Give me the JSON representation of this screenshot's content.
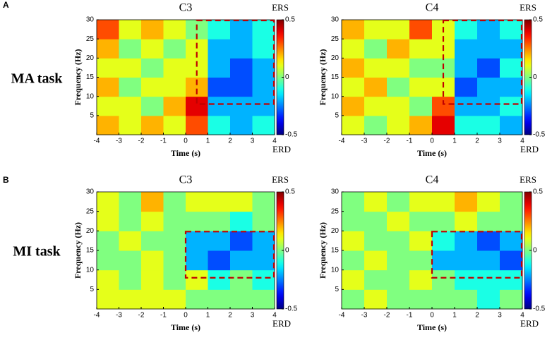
{
  "rows": [
    {
      "letter": "A",
      "task": "MA task"
    },
    {
      "letter": "B",
      "task": "MI task"
    }
  ],
  "chart_data": [
    {
      "type": "heatmap",
      "title": "C3",
      "xlabel": "Time (s)",
      "ylabel": "Frequency (Hz)",
      "colormap": "jet",
      "xbins": [
        -4,
        -3,
        -2,
        -1,
        0,
        1,
        2,
        3,
        4
      ],
      "ybins": [
        0,
        5,
        10,
        15,
        20,
        25,
        30
      ],
      "values": [
        [
          0.2,
          0.1,
          0.2,
          0.1,
          0.3,
          -0.1,
          -0.2,
          -0.1
        ],
        [
          0.1,
          0.1,
          0.0,
          0.2,
          0.4,
          -0.2,
          -0.2,
          -0.2
        ],
        [
          0.2,
          0.0,
          0.1,
          0.1,
          0.2,
          -0.3,
          -0.3,
          -0.2
        ],
        [
          0.1,
          0.1,
          0.0,
          0.1,
          0.1,
          -0.2,
          -0.3,
          -0.2
        ],
        [
          0.2,
          0.0,
          0.1,
          0.0,
          0.1,
          -0.2,
          -0.2,
          -0.1
        ],
        [
          0.3,
          0.1,
          0.2,
          0.1,
          0.0,
          -0.1,
          -0.2,
          -0.1
        ]
      ],
      "xlim": [
        -4,
        4
      ],
      "ylim": [
        0,
        30
      ],
      "xticks": [
        -4,
        -3,
        -2,
        -1,
        0,
        1,
        2,
        3,
        4
      ],
      "yticks": [
        5,
        10,
        15,
        20,
        25,
        30
      ],
      "zlim": [
        -0.5,
        0.5
      ],
      "zticks": [
        -0.5,
        0,
        0.5
      ],
      "colorbar_top": "ERS",
      "colorbar_bottom": "ERD",
      "region": {
        "x": [
          0.5,
          4
        ],
        "y": [
          8,
          30
        ],
        "color": "#c00000"
      }
    },
    {
      "type": "heatmap",
      "title": "C4",
      "xlabel": "Time (s)",
      "ylabel": "Frequency (Hz)",
      "colormap": "jet",
      "xbins": [
        -4,
        -3,
        -2,
        -1,
        0,
        1,
        2,
        3,
        4
      ],
      "ybins": [
        0,
        5,
        10,
        15,
        20,
        25,
        30
      ],
      "values": [
        [
          0.1,
          0.0,
          0.1,
          0.2,
          0.4,
          -0.1,
          -0.1,
          -0.2
        ],
        [
          0.2,
          0.1,
          0.1,
          0.0,
          0.3,
          -0.2,
          -0.2,
          -0.1
        ],
        [
          0.1,
          0.2,
          0.0,
          0.1,
          0.1,
          -0.3,
          -0.2,
          -0.2
        ],
        [
          0.2,
          0.1,
          0.1,
          0.0,
          0.0,
          -0.2,
          -0.3,
          -0.1
        ],
        [
          0.1,
          0.0,
          0.2,
          0.1,
          0.1,
          -0.2,
          -0.2,
          -0.2
        ],
        [
          0.2,
          0.1,
          0.1,
          0.3,
          0.1,
          -0.1,
          -0.2,
          -0.1
        ]
      ],
      "xlim": [
        -4,
        4
      ],
      "ylim": [
        0,
        30
      ],
      "xticks": [
        -4,
        -3,
        -2,
        -1,
        0,
        1,
        2,
        3,
        4
      ],
      "yticks": [
        5,
        10,
        15,
        20,
        25,
        30
      ],
      "zlim": [
        -0.5,
        0.5
      ],
      "zticks": [
        -0.5,
        0,
        0.5
      ],
      "colorbar_top": "ERS",
      "colorbar_bottom": "ERD",
      "region": {
        "x": [
          0.5,
          4
        ],
        "y": [
          8,
          30
        ],
        "color": "#c00000"
      }
    },
    {
      "type": "heatmap",
      "title": "C3",
      "xlabel": "Time (s)",
      "ylabel": "Frequency (Hz)",
      "colormap": "jet",
      "xbins": [
        -4,
        -3,
        -2,
        -1,
        0,
        1,
        2,
        3,
        4
      ],
      "ybins": [
        0,
        5,
        10,
        15,
        20,
        25,
        30
      ],
      "values": [
        [
          0.1,
          0.1,
          0.1,
          0.1,
          0.0,
          0.0,
          0.0,
          0.0
        ],
        [
          0.1,
          0.0,
          0.1,
          0.0,
          0.1,
          -0.1,
          0.0,
          -0.1
        ],
        [
          0.0,
          0.0,
          0.1,
          0.0,
          -0.2,
          -0.3,
          -0.2,
          -0.2
        ],
        [
          0.0,
          0.1,
          0.0,
          0.0,
          -0.2,
          -0.2,
          -0.3,
          -0.2
        ],
        [
          0.1,
          0.0,
          0.1,
          0.0,
          0.0,
          0.0,
          -0.1,
          0.0
        ],
        [
          0.1,
          0.0,
          0.2,
          0.0,
          0.1,
          0.1,
          0.1,
          0.0
        ]
      ],
      "xlim": [
        -4,
        4
      ],
      "ylim": [
        0,
        30
      ],
      "xticks": [
        -4,
        -3,
        -2,
        -1,
        0,
        1,
        2,
        3,
        4
      ],
      "yticks": [
        5,
        10,
        15,
        20,
        25,
        30
      ],
      "zlim": [
        -0.5,
        0.5
      ],
      "zticks": [
        -0.5,
        0,
        0.5
      ],
      "colorbar_top": "ERS",
      "colorbar_bottom": "ERD",
      "region": {
        "x": [
          0,
          4
        ],
        "y": [
          8,
          20
        ],
        "color": "#c00000"
      }
    },
    {
      "type": "heatmap",
      "title": "C4",
      "xlabel": "Time (s)",
      "ylabel": "Frequency (Hz)",
      "colormap": "jet",
      "xbins": [
        -4,
        -3,
        -2,
        -1,
        0,
        1,
        2,
        3,
        4
      ],
      "ybins": [
        0,
        5,
        10,
        15,
        20,
        25,
        30
      ],
      "values": [
        [
          0.0,
          0.1,
          0.0,
          0.0,
          0.0,
          0.0,
          -0.1,
          0.0
        ],
        [
          0.1,
          0.0,
          0.0,
          0.1,
          0.0,
          -0.1,
          -0.1,
          -0.1
        ],
        [
          0.0,
          0.1,
          0.0,
          0.0,
          -0.2,
          -0.2,
          -0.2,
          -0.3
        ],
        [
          0.1,
          0.0,
          0.0,
          0.1,
          -0.1,
          -0.2,
          -0.3,
          -0.2
        ],
        [
          0.0,
          0.0,
          0.1,
          0.0,
          0.0,
          0.1,
          0.0,
          0.0
        ],
        [
          0.0,
          0.1,
          0.0,
          0.1,
          0.1,
          0.2,
          0.1,
          0.0
        ]
      ],
      "xlim": [
        -4,
        4
      ],
      "ylim": [
        0,
        30
      ],
      "xticks": [
        -4,
        -3,
        -2,
        -1,
        0,
        1,
        2,
        3,
        4
      ],
      "yticks": [
        5,
        10,
        15,
        20,
        25,
        30
      ],
      "zlim": [
        -0.5,
        0.5
      ],
      "zticks": [
        -0.5,
        0,
        0.5
      ],
      "colorbar_top": "ERS",
      "colorbar_bottom": "ERD",
      "region": {
        "x": [
          0,
          4
        ],
        "y": [
          8,
          20
        ],
        "color": "#c00000"
      }
    }
  ]
}
